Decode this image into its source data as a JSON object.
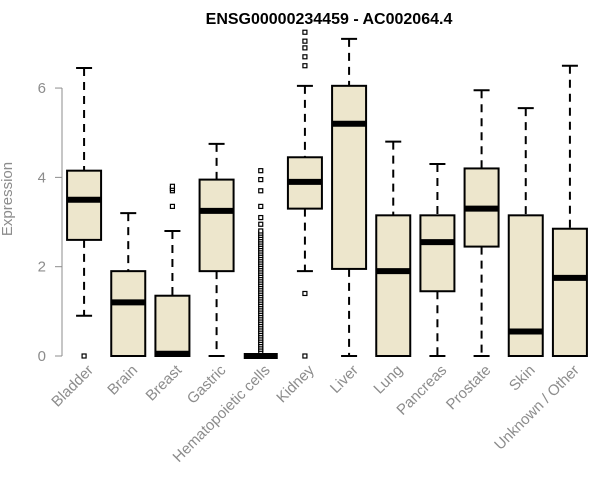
{
  "chart_data": {
    "type": "boxplot",
    "title": "ENSG00000234459 - AC002064.4",
    "ylabel": "Expression",
    "ylim": [
      0,
      7.3
    ],
    "yticks": [
      0,
      2,
      4,
      6
    ],
    "grid": false,
    "box_fill": "#ede6cc",
    "box_stroke": "#000000",
    "categories": [
      "Bladder",
      "Brain",
      "Breast",
      "Gastric",
      "Hematopoietic cells",
      "Kidney",
      "Liver",
      "Lung",
      "Pancreas",
      "Prostate",
      "Skin",
      "Unknown / Other"
    ],
    "boxes": [
      {
        "whisker_low": 0.9,
        "q1": 2.6,
        "median": 3.5,
        "q3": 4.15,
        "whisker_high": 6.45,
        "outliers": [
          0.0
        ]
      },
      {
        "whisker_low": 0.0,
        "q1": 0.0,
        "median": 1.2,
        "q3": 1.9,
        "whisker_high": 3.2,
        "outliers": []
      },
      {
        "whisker_low": 0.0,
        "q1": 0.0,
        "median": 0.05,
        "q3": 1.35,
        "whisker_high": 2.8,
        "outliers": [
          3.35,
          3.7,
          3.75,
          3.8
        ]
      },
      {
        "whisker_low": 0.0,
        "q1": 1.9,
        "median": 3.25,
        "q3": 3.95,
        "whisker_high": 4.75,
        "outliers": []
      },
      {
        "whisker_low": 0.0,
        "q1": 0.0,
        "median": 0.0,
        "q3": 0.0,
        "whisker_high": 0.0,
        "outliers": [
          0.1,
          0.15,
          0.2,
          0.25,
          0.3,
          0.35,
          0.4,
          0.45,
          0.5,
          0.55,
          0.6,
          0.65,
          0.7,
          0.75,
          0.8,
          0.85,
          0.9,
          0.95,
          1.0,
          1.05,
          1.1,
          1.15,
          1.2,
          1.25,
          1.3,
          1.35,
          1.4,
          1.45,
          1.5,
          1.55,
          1.6,
          1.65,
          1.7,
          1.75,
          1.8,
          1.85,
          1.9,
          1.95,
          2.0,
          2.05,
          2.1,
          2.15,
          2.2,
          2.25,
          2.3,
          2.35,
          2.4,
          2.45,
          2.5,
          2.55,
          2.6,
          2.65,
          2.7,
          2.75,
          2.8,
          2.95,
          3.1,
          3.35,
          3.7,
          3.95,
          4.15
        ]
      },
      {
        "whisker_low": 1.9,
        "q1": 3.3,
        "median": 3.9,
        "q3": 4.45,
        "whisker_high": 6.05,
        "outliers": [
          0.0,
          1.4,
          6.5,
          6.7,
          6.9,
          7.05,
          7.25
        ]
      },
      {
        "whisker_low": 0.0,
        "q1": 1.95,
        "median": 5.2,
        "q3": 6.05,
        "whisker_high": 7.1,
        "outliers": []
      },
      {
        "whisker_low": 0.0,
        "q1": 0.0,
        "median": 1.9,
        "q3": 3.15,
        "whisker_high": 4.8,
        "outliers": []
      },
      {
        "whisker_low": 0.0,
        "q1": 1.45,
        "median": 2.55,
        "q3": 3.15,
        "whisker_high": 4.3,
        "outliers": []
      },
      {
        "whisker_low": 0.0,
        "q1": 2.45,
        "median": 3.3,
        "q3": 4.2,
        "whisker_high": 5.95,
        "outliers": []
      },
      {
        "whisker_low": 0.0,
        "q1": 0.0,
        "median": 0.55,
        "q3": 3.15,
        "whisker_high": 5.55,
        "outliers": []
      },
      {
        "whisker_low": 0.0,
        "q1": 0.0,
        "median": 1.75,
        "q3": 2.85,
        "whisker_high": 6.5,
        "outliers": []
      }
    ]
  }
}
